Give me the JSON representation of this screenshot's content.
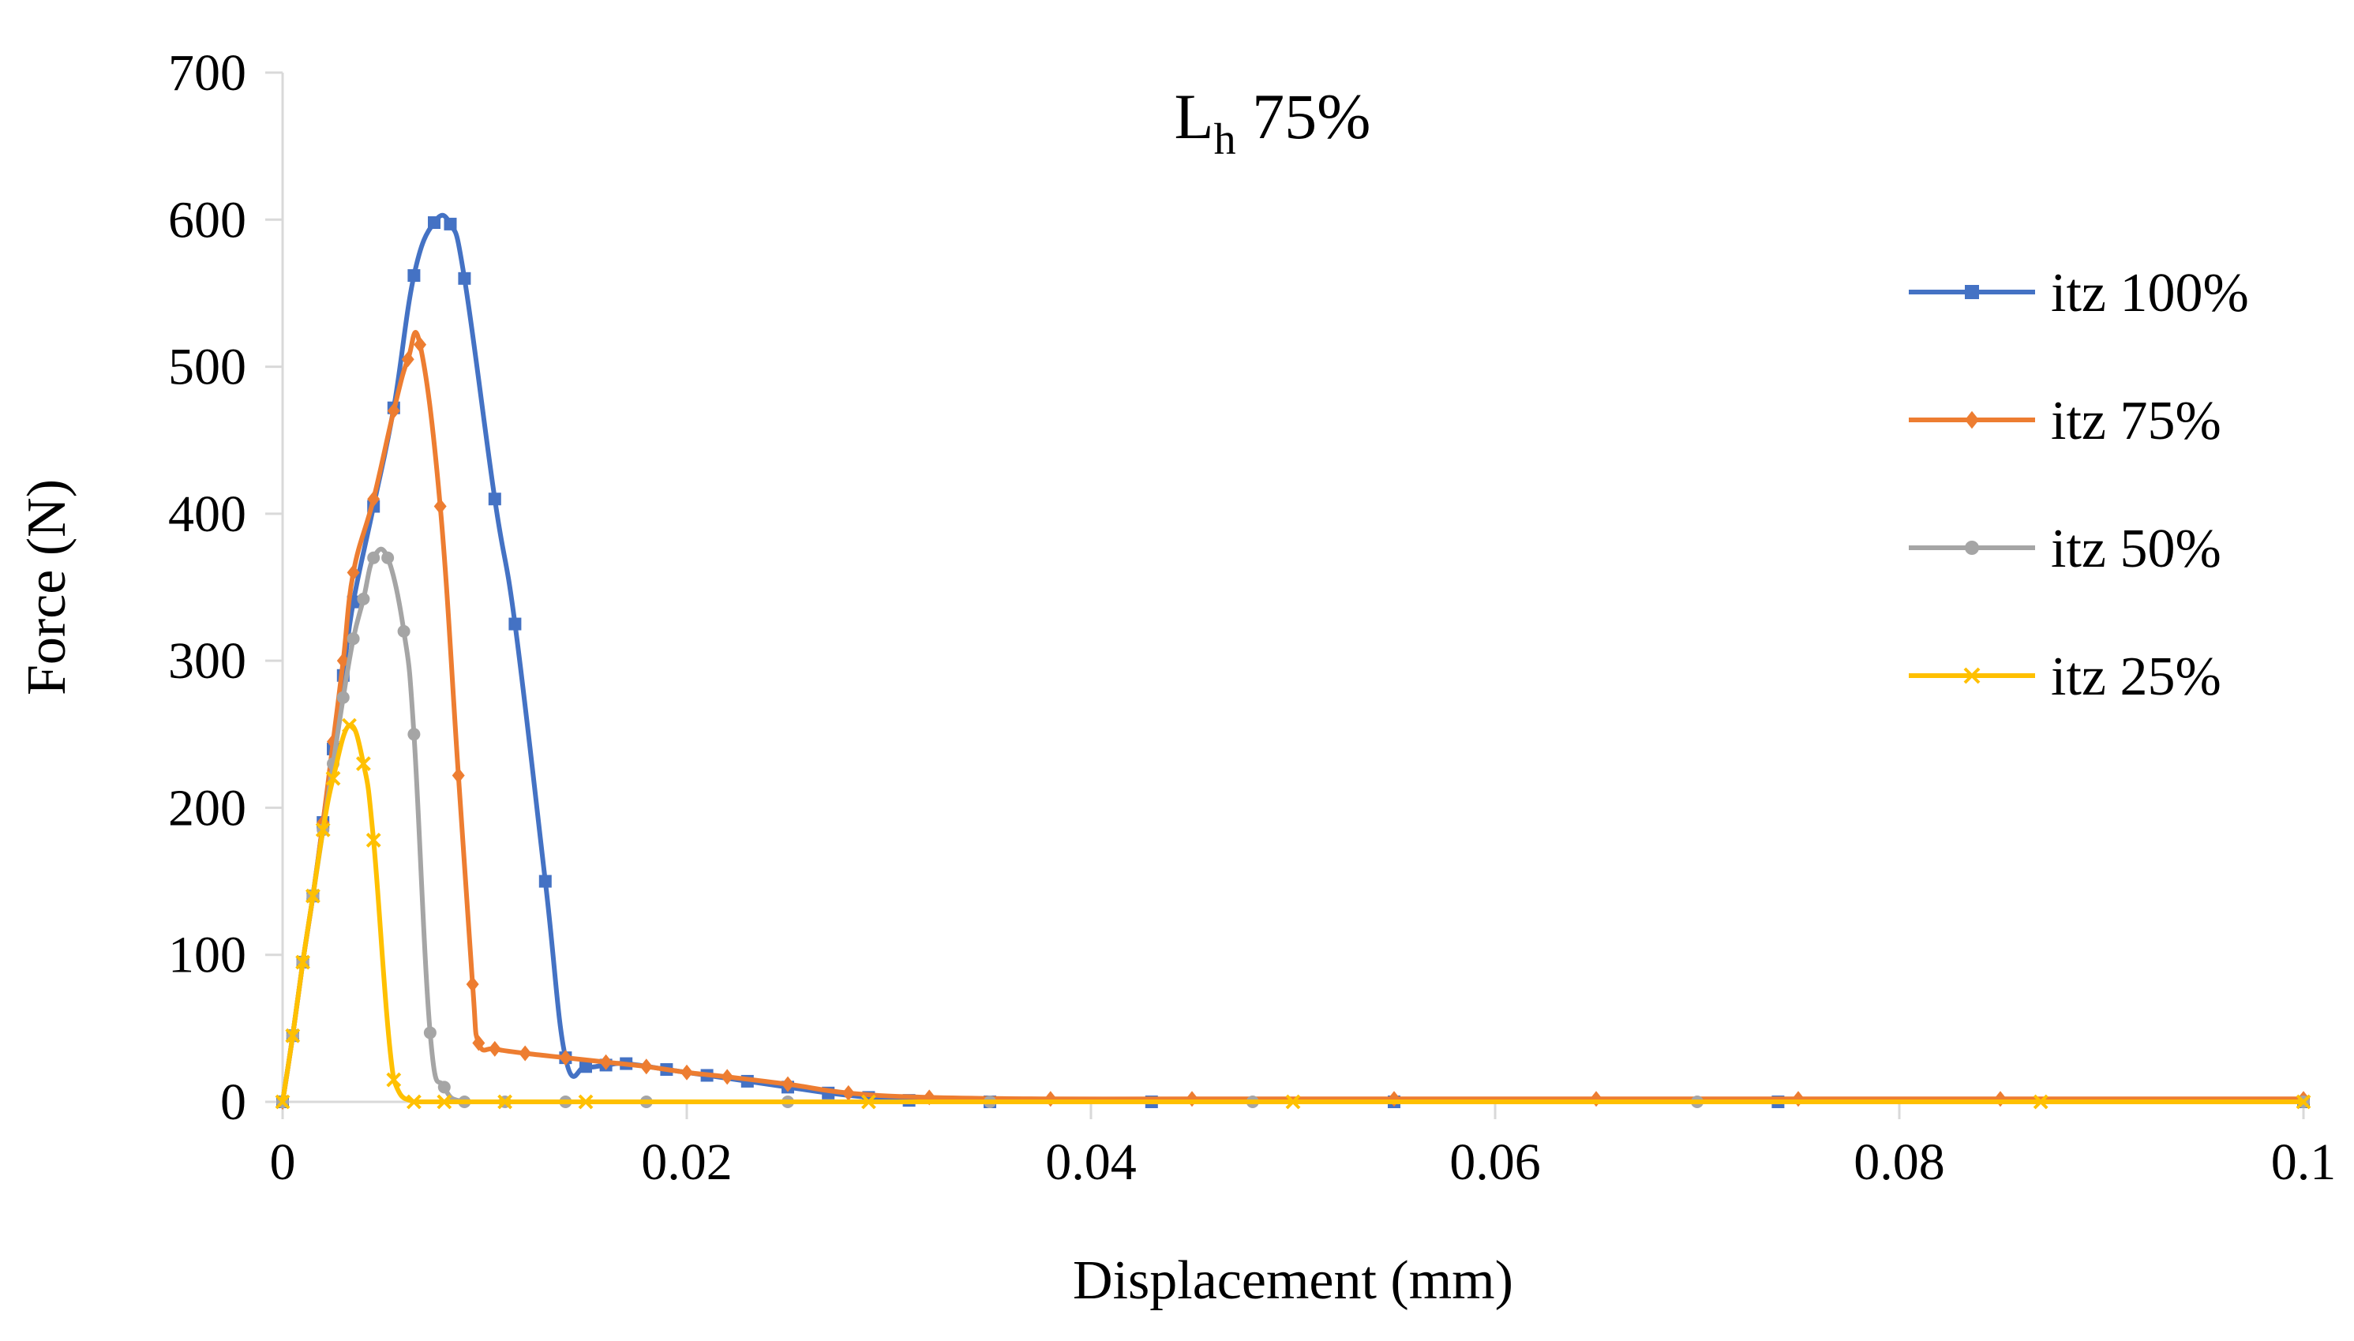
{
  "chart_data": {
    "type": "line",
    "title_main": "L",
    "title_subscript": "h",
    "title_rest": " 75%",
    "xlabel": "Displacement (mm)",
    "ylabel": "Force (N)",
    "xlim": [
      0,
      0.1
    ],
    "ylim": [
      0,
      700
    ],
    "xticks": [
      0,
      0.02,
      0.04,
      0.06,
      0.08,
      0.1
    ],
    "xtick_labels": [
      "0",
      "0.02",
      "0.04",
      "0.06",
      "0.08",
      "0.1"
    ],
    "yticks": [
      0,
      100,
      200,
      300,
      400,
      500,
      600,
      700
    ],
    "ytick_labels": [
      "0",
      "100",
      "200",
      "300",
      "400",
      "500",
      "600",
      "700"
    ],
    "grid": false,
    "legend_position": "right",
    "series": [
      {
        "name": "itz 100%",
        "color": "#4472C4",
        "marker": "square",
        "x": [
          0,
          0.0005,
          0.001,
          0.0015,
          0.002,
          0.0025,
          0.003,
          0.0035,
          0.0045,
          0.0055,
          0.0065,
          0.0075,
          0.0083,
          0.009,
          0.0105,
          0.0115,
          0.013,
          0.014,
          0.015,
          0.016,
          0.017,
          0.019,
          0.021,
          0.023,
          0.025,
          0.027,
          0.029,
          0.031,
          0.035,
          0.043,
          0.055,
          0.074,
          0.1
        ],
        "y": [
          0,
          45,
          95,
          140,
          190,
          240,
          290,
          340,
          405,
          472,
          562,
          598,
          597,
          560,
          410,
          325,
          150,
          30,
          24,
          25,
          26,
          22,
          18,
          14,
          10,
          6,
          3,
          1,
          0,
          0,
          0,
          0,
          0
        ]
      },
      {
        "name": "itz 75%",
        "color": "#ED7D31",
        "marker": "diamond",
        "x": [
          0,
          0.0005,
          0.001,
          0.0015,
          0.002,
          0.0025,
          0.003,
          0.0035,
          0.0045,
          0.0055,
          0.0062,
          0.0068,
          0.0078,
          0.0087,
          0.0094,
          0.0097,
          0.0105,
          0.012,
          0.014,
          0.016,
          0.018,
          0.02,
          0.022,
          0.025,
          0.028,
          0.032,
          0.038,
          0.045,
          0.055,
          0.065,
          0.075,
          0.085,
          0.1
        ],
        "y": [
          0,
          45,
          95,
          140,
          190,
          245,
          300,
          360,
          410,
          470,
          505,
          515,
          405,
          222,
          80,
          40,
          36,
          33,
          30,
          27,
          24,
          20,
          17,
          12,
          6,
          3,
          2,
          2,
          2,
          2,
          2,
          2,
          2
        ]
      },
      {
        "name": "itz 50%",
        "color": "#A5A5A5",
        "marker": "circle",
        "x": [
          0,
          0.0005,
          0.001,
          0.0015,
          0.002,
          0.0025,
          0.003,
          0.0035,
          0.004,
          0.0045,
          0.0052,
          0.006,
          0.0065,
          0.0073,
          0.008,
          0.009,
          0.011,
          0.014,
          0.018,
          0.025,
          0.035,
          0.048,
          0.07,
          0.1
        ],
        "y": [
          0,
          45,
          95,
          140,
          185,
          230,
          275,
          315,
          342,
          370,
          370,
          320,
          250,
          47,
          10,
          0,
          0,
          0,
          0,
          0,
          0,
          0,
          0,
          0
        ]
      },
      {
        "name": "itz 25%",
        "color": "#FFC000",
        "marker": "x",
        "x": [
          0,
          0.0005,
          0.001,
          0.0015,
          0.002,
          0.0025,
          0.0033,
          0.004,
          0.0045,
          0.0055,
          0.0065,
          0.008,
          0.011,
          0.015,
          0.029,
          0.05,
          0.087,
          0.1
        ],
        "y": [
          0,
          45,
          95,
          140,
          185,
          220,
          256,
          230,
          178,
          15,
          0,
          0,
          0,
          0,
          0,
          0,
          0,
          0
        ]
      }
    ]
  }
}
